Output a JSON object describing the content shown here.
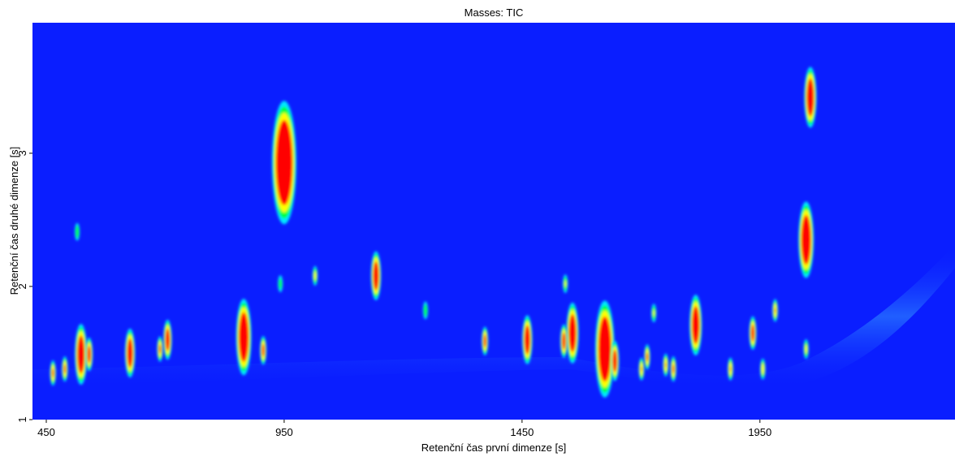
{
  "chart_data": {
    "type": "heatmap",
    "title": "Masses:  TIC",
    "xlabel": "Retenční čas první dimenze [s]",
    "ylabel": "Retenční čas druhé dimenze [s]",
    "x": [
      950,
      2056,
      2047,
      1143,
      1815,
      865,
      1624,
      1556,
      1461,
      523,
      626,
      705,
      1935,
      1982,
      1015,
      515,
      464,
      489,
      1645,
      1372,
      1713,
      1752,
      1888,
      2047,
      1538,
      906,
      689,
      540,
      1247,
      1541,
      1727,
      942,
      1701,
      1768,
      1956
    ],
    "y": [
      2.93,
      3.42,
      2.35,
      2.08,
      1.71,
      1.62,
      1.53,
      1.65,
      1.6,
      1.49,
      1.5,
      1.6,
      1.65,
      1.82,
      2.08,
      2.41,
      1.35,
      1.38,
      1.44,
      1.59,
      1.47,
      1.41,
      1.38,
      1.53,
      1.59,
      1.52,
      1.53,
      1.49,
      1.82,
      2.02,
      1.8,
      2.02,
      1.38,
      1.38,
      1.38
    ],
    "values": [
      100,
      85,
      90,
      80,
      85,
      90,
      95,
      85,
      80,
      85,
      80,
      75,
      70,
      55,
      45,
      35,
      60,
      60,
      75,
      65,
      60,
      55,
      55,
      45,
      70,
      65,
      60,
      70,
      35,
      40,
      40,
      30,
      55,
      60,
      50
    ],
    "xlim": [
      421,
      2360
    ],
    "ylim": [
      1,
      3.98
    ],
    "xticks": [
      450,
      950,
      1450,
      1950
    ],
    "yticks": [
      1,
      2,
      3
    ],
    "colors": [
      "#0a1eff",
      "#00e8ff",
      "#00ff40",
      "#ffff00",
      "#ff0000"
    ]
  }
}
